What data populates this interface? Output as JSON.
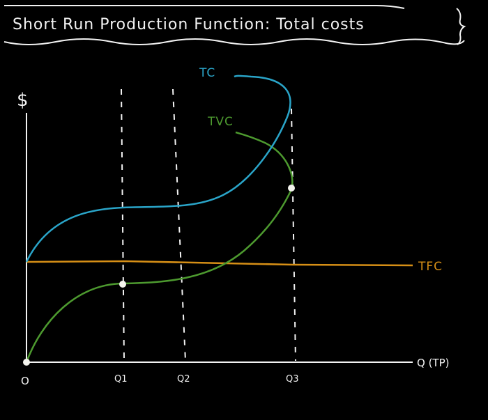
{
  "title": "Short Run Production Function: Total costs",
  "axes": {
    "y_label": "$",
    "x_label": "Q (TP)",
    "origin_label": "O"
  },
  "ticks": [
    "Q1",
    "Q2",
    "Q3"
  ],
  "curves": {
    "tc": {
      "label": "TC",
      "color": "#2aa5c9"
    },
    "tvc": {
      "label": "TVC",
      "color": "#4d9a2f"
    },
    "tfc": {
      "label": "TFC",
      "color": "#d68f16"
    }
  },
  "colors": {
    "background": "#000000",
    "chalk": "#f2f2f2",
    "point": "#f4f4ee"
  }
}
